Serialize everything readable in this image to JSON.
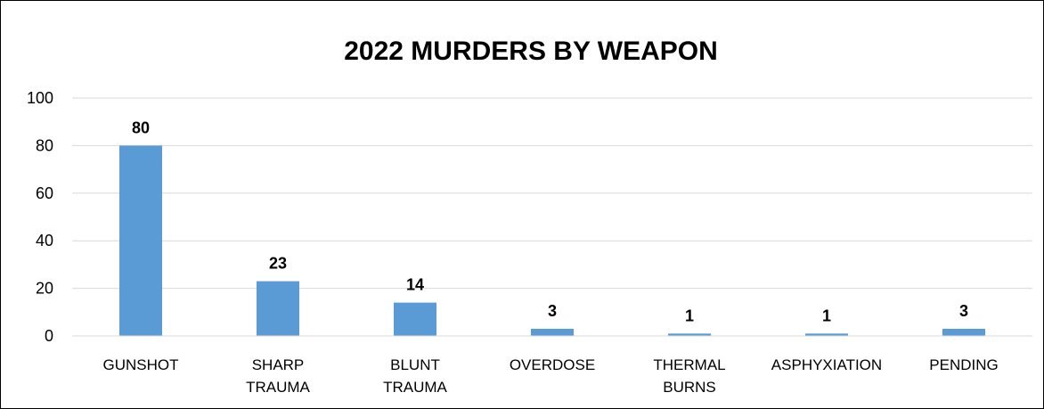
{
  "chart_data": {
    "type": "bar",
    "title": "2022 MURDERS BY WEAPON",
    "categories": [
      [
        "GUNSHOT"
      ],
      [
        "SHARP",
        "TRAUMA"
      ],
      [
        "BLUNT",
        "TRAUMA"
      ],
      [
        "OVERDOSE"
      ],
      [
        "THERMAL",
        "BURNS"
      ],
      [
        "ASPHYXIATION"
      ],
      [
        "PENDING"
      ]
    ],
    "values": [
      80,
      23,
      14,
      3,
      1,
      1,
      3
    ],
    "data_labels": [
      "80",
      "23",
      "14",
      "3",
      "1",
      "1",
      "3"
    ],
    "y_ticks": [
      "0",
      "20",
      "40",
      "60",
      "80",
      "100"
    ],
    "ylim": [
      0,
      100
    ],
    "grid": true,
    "legend": "none",
    "bar_color": "#5B9BD5",
    "grid_color": "#D9D9D9"
  }
}
